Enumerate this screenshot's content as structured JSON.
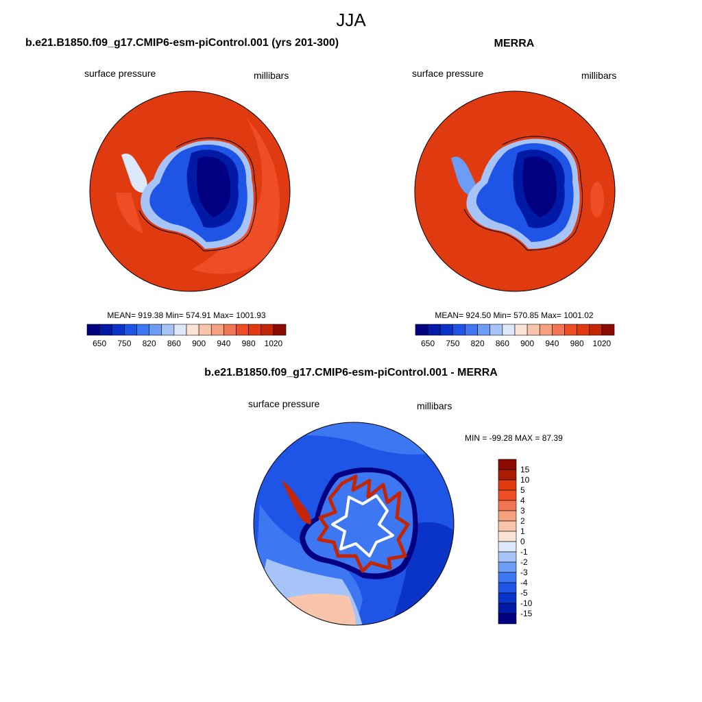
{
  "page_title": "JJA",
  "colors": {
    "blue_scale": [
      "#000080",
      "#001aa6",
      "#0a33c8",
      "#1f55e6",
      "#3d77f2",
      "#6d9cf5",
      "#a6c4f7",
      "#dde8fb"
    ],
    "red_scale": [
      "#fbe2d4",
      "#f8c4ab",
      "#f5a07e",
      "#f27654",
      "#ee4d25",
      "#e03a10",
      "#c32605",
      "#a81c03",
      "#8b0a00"
    ]
  },
  "chart_data": [
    {
      "type": "heatmap",
      "title": "b.e21.B1850.f09_g17.CMIP6-esm-piControl.001 (yrs 201-300)",
      "left_label": "surface pressure",
      "right_label": "millibars",
      "stats_text": "MEAN= 919.38  Min= 574.91  Max= 1001.93",
      "stats": {
        "mean": 919.38,
        "min": 574.91,
        "max": 1001.93
      },
      "colorbar_ticks": [
        "650",
        "750",
        "820",
        "860",
        "900",
        "940",
        "980",
        "1020"
      ],
      "colorbar_levels": 16
    },
    {
      "type": "heatmap",
      "title": "MERRA",
      "left_label": "surface pressure",
      "right_label": "millibars",
      "stats_text": "MEAN= 924.50  Min= 570.85  Max= 1001.02",
      "stats": {
        "mean": 924.5,
        "min": 570.85,
        "max": 1001.02
      },
      "colorbar_ticks": [
        "650",
        "750",
        "820",
        "860",
        "900",
        "940",
        "980",
        "1020"
      ],
      "colorbar_levels": 16
    },
    {
      "type": "heatmap",
      "title": "b.e21.B1850.f09_g17.CMIP6-esm-piControl.001 - MERRA",
      "left_label": "surface pressure",
      "right_label": "millibars",
      "stats_text": "MIN = -99.28 MAX =  87.39",
      "stats": {
        "min": -99.28,
        "max": 87.39
      },
      "colorbar_ticks": [
        "15",
        "10",
        "5",
        "4",
        "3",
        "2",
        "1",
        "0",
        "-1",
        "-2",
        "-3",
        "-4",
        "-5",
        "-10",
        "-15"
      ]
    }
  ]
}
